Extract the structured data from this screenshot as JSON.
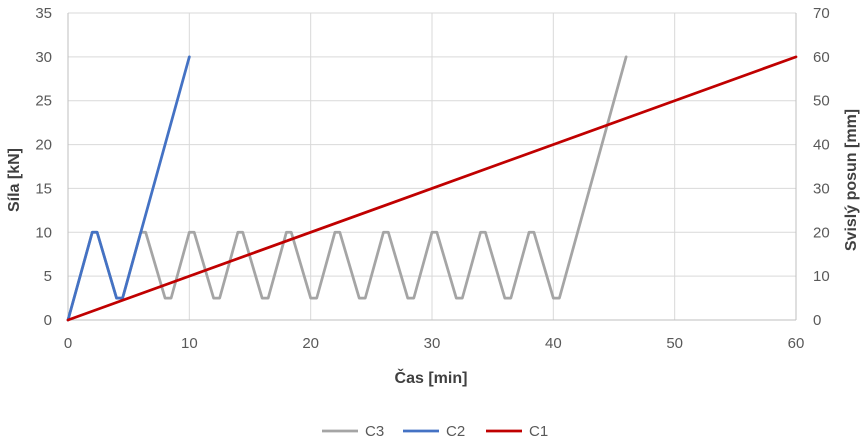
{
  "chart_data": {
    "type": "line",
    "title": "",
    "xlabel": "Čas [min]",
    "ylabel": "Síla [kN]",
    "y2label": "Svislý posun [mm]",
    "xlim": [
      0,
      60
    ],
    "ylim": [
      0,
      35
    ],
    "y2lim": [
      0,
      70
    ],
    "xticks": [
      "0",
      "10",
      "20",
      "30",
      "40",
      "50",
      "60"
    ],
    "yticks": [
      "0",
      "5",
      "10",
      "15",
      "20",
      "25",
      "30",
      "35"
    ],
    "y2ticks": [
      "0",
      "10",
      "20",
      "30",
      "40",
      "50",
      "60",
      "70"
    ],
    "grid": true,
    "legend_position": "bottom",
    "series": [
      {
        "name": "C3",
        "axis": "left",
        "color": "#a5a5a5",
        "x": [
          0,
          2,
          2.4,
          4,
          4.5,
          6,
          6.4,
          8,
          8.5,
          10,
          10.4,
          12,
          12.5,
          14,
          14.4,
          16,
          16.5,
          18,
          18.4,
          20,
          20.5,
          22,
          22.4,
          24,
          24.5,
          26,
          26.4,
          28,
          28.5,
          30,
          30.4,
          32,
          32.5,
          34,
          34.4,
          36,
          36.5,
          38,
          38.4,
          40,
          40.5,
          46
        ],
        "y": [
          0,
          10,
          10,
          2.5,
          2.5,
          10,
          10,
          2.5,
          2.5,
          10,
          10,
          2.5,
          2.5,
          10,
          10,
          2.5,
          2.5,
          10,
          10,
          2.5,
          2.5,
          10,
          10,
          2.5,
          2.5,
          10,
          10,
          2.5,
          2.5,
          10,
          10,
          2.5,
          2.5,
          10,
          10,
          2.5,
          2.5,
          10,
          10,
          2.5,
          2.5,
          30
        ]
      },
      {
        "name": "C2",
        "axis": "left",
        "color": "#4472c4",
        "x": [
          0,
          2,
          2.4,
          4,
          4.5,
          10
        ],
        "y": [
          0,
          10,
          10,
          2.5,
          2.5,
          30
        ]
      },
      {
        "name": "C1",
        "axis": "right",
        "color": "#c00000",
        "x": [
          0,
          60
        ],
        "y": [
          0,
          60
        ]
      }
    ]
  }
}
